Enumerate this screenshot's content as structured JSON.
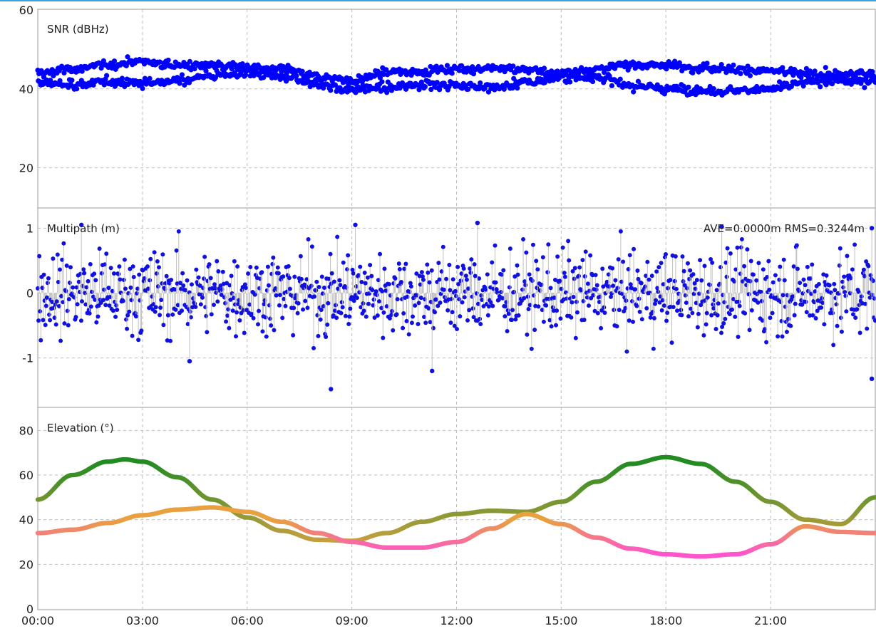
{
  "colors": {
    "snr": "#0000ff",
    "multipath_marker": "#1010e0",
    "multipath_stem": "#c0c0c0",
    "elevation_a_high": "#228b22",
    "elevation_a_low": "#c8a040",
    "elevation_b_high": "#e8a040",
    "elevation_b_low": "#ff55cc",
    "grid": "#bdbdbd",
    "panel_border": "#9a9a9a"
  },
  "chart_data": [
    {
      "type": "scatter",
      "title": "SNR (dBHz)",
      "ylim": [
        10,
        60
      ],
      "yticks": [
        "20",
        "40",
        "60"
      ],
      "ytick_values": [
        20,
        40,
        60
      ],
      "grid": true,
      "series": [
        {
          "shape": "two-track",
          "x": [
            0,
            1,
            2,
            3,
            4,
            5,
            6,
            7,
            8,
            9,
            10,
            11,
            12,
            13,
            14,
            15,
            16,
            17,
            18,
            19,
            20,
            21,
            22,
            23,
            24
          ],
          "upper": [
            44,
            45,
            46,
            47,
            46,
            46,
            45.5,
            45,
            43,
            42,
            44,
            44.5,
            45,
            45,
            45,
            44,
            45,
            46,
            46,
            45.5,
            45,
            44.5,
            44,
            43.5,
            44
          ],
          "lower": [
            41.5,
            41,
            42,
            41.5,
            42,
            43.5,
            44,
            43,
            41,
            40,
            40.5,
            41,
            41,
            40.5,
            41.5,
            43,
            43,
            41,
            40,
            39.5,
            39.5,
            40,
            41.5,
            42,
            42
          ]
        }
      ]
    },
    {
      "type": "scatter",
      "title": "Multipath (m)",
      "annotation": "AVE=0.0000m RMS=0.3244m",
      "ylim": [
        -1.75,
        1.3
      ],
      "yticks": [
        "-1",
        "0",
        "1"
      ],
      "ytick_values": [
        -1,
        0,
        1
      ],
      "grid": true,
      "series": [
        {
          "distribution": "noise",
          "mean": 0.0,
          "rms": 0.3244,
          "outliers": [
            {
              "x": 1.25,
              "y": 1.05
            },
            {
              "x": 8.4,
              "y": -1.48
            },
            {
              "x": 9.1,
              "y": 1.05
            },
            {
              "x": 11.3,
              "y": -1.2
            },
            {
              "x": 12.6,
              "y": 1.08
            },
            {
              "x": 4.35,
              "y": -1.05
            },
            {
              "x": 23.9,
              "y": -1.32
            },
            {
              "x": 23.9,
              "y": 1.0
            },
            {
              "x": 19.6,
              "y": 1.02
            }
          ]
        }
      ]
    },
    {
      "type": "line",
      "title": "Elevation (°)",
      "ylim": [
        0,
        90
      ],
      "yticks": [
        "0",
        "20",
        "40",
        "60",
        "80"
      ],
      "ytick_values": [
        0,
        20,
        40,
        60,
        80
      ],
      "grid": true,
      "series": [
        {
          "x": [
            0,
            1,
            2,
            2.5,
            3,
            4,
            5,
            6,
            7,
            8,
            9,
            10,
            11,
            12,
            13,
            14,
            15,
            16,
            17,
            18,
            19,
            20,
            21,
            22,
            23,
            24
          ],
          "y": [
            49,
            60,
            66,
            67,
            66,
            59,
            49,
            41,
            35,
            31,
            30.5,
            34,
            39,
            42.5,
            44,
            43.5,
            48,
            57,
            65,
            68,
            65,
            57,
            48,
            40,
            38,
            50
          ]
        },
        {
          "x": [
            0,
            1,
            2,
            3,
            4,
            5,
            6,
            7,
            8,
            9,
            10,
            11,
            12,
            13,
            14,
            15,
            16,
            17,
            18,
            19,
            20,
            21,
            22,
            23,
            24
          ],
          "y": [
            34,
            35.5,
            38.5,
            42,
            44.5,
            45.5,
            43.5,
            39,
            34,
            30,
            27.5,
            27.5,
            30,
            36,
            42.5,
            38,
            32,
            27,
            24.5,
            23.5,
            24.5,
            29,
            37,
            34.5,
            34
          ]
        }
      ]
    }
  ],
  "xticks": [
    "00:00",
    "03:00",
    "06:00",
    "09:00",
    "12:00",
    "15:00",
    "18:00",
    "21:00"
  ],
  "xtick_hours": [
    0,
    3,
    6,
    9,
    12,
    15,
    18,
    21
  ],
  "xlim": [
    0,
    24
  ]
}
